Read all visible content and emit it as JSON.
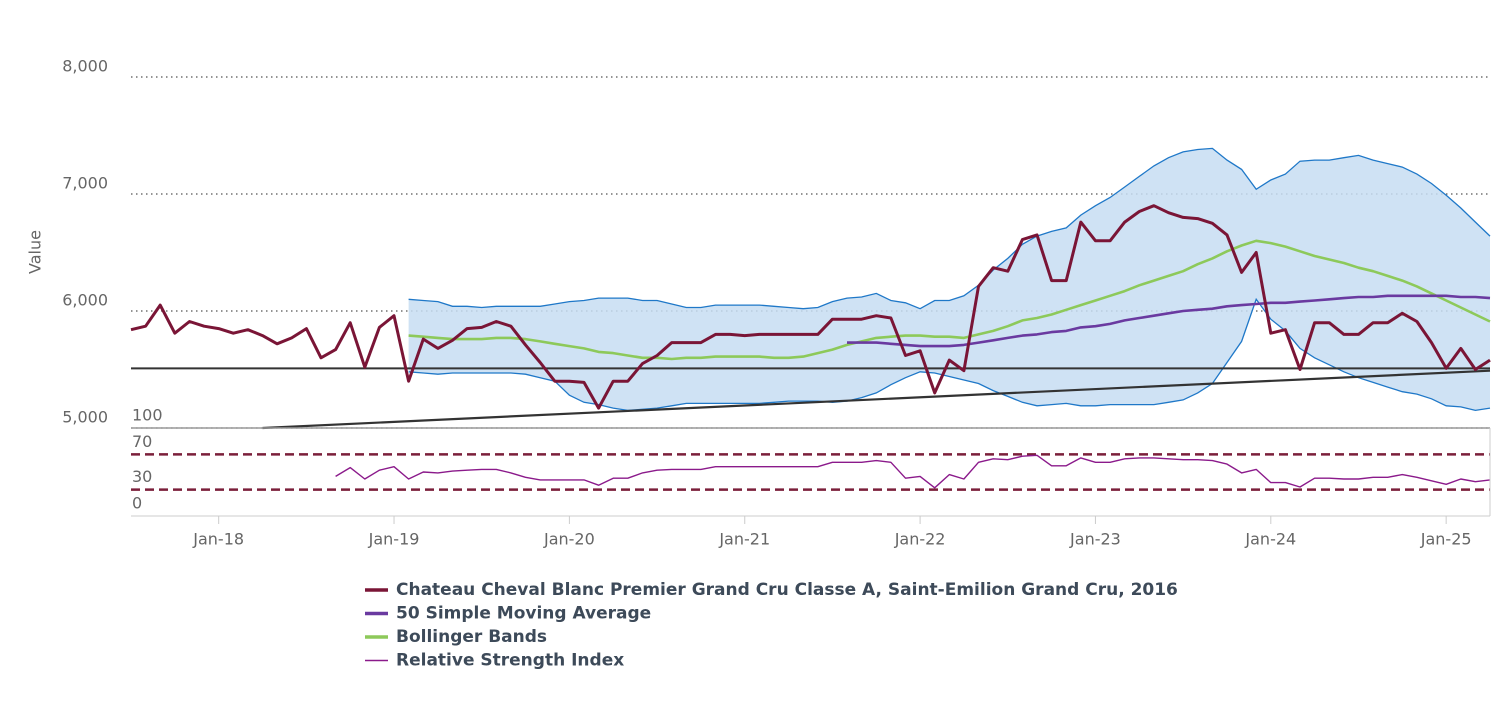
{
  "chart_data": {
    "type": "line",
    "ylabel": "Value",
    "ylim": [
      5000,
      8000
    ],
    "yticks": [
      {
        "value": 5000,
        "label": "5,000"
      },
      {
        "value": 6000,
        "label": "6,000"
      },
      {
        "value": 7000,
        "label": "7,000"
      },
      {
        "value": 8000,
        "label": "8,000"
      }
    ],
    "y2lim": [
      0,
      100
    ],
    "y2ticks": [
      0,
      30,
      70,
      100
    ],
    "xlim": [
      "2017-07",
      "2025-04"
    ],
    "xticks": [
      {
        "value": "2018-01",
        "label": "Jan-18"
      },
      {
        "value": "2019-01",
        "label": "Jan-19"
      },
      {
        "value": "2020-01",
        "label": "Jan-20"
      },
      {
        "value": "2021-01",
        "label": "Jan-21"
      },
      {
        "value": "2022-01",
        "label": "Jan-22"
      },
      {
        "value": "2023-01",
        "label": "Jan-23"
      },
      {
        "value": "2024-01",
        "label": "Jan-24"
      },
      {
        "value": "2025-01",
        "label": "Jan-25"
      }
    ],
    "grid": true,
    "x": [
      "2017-07",
      "2017-08",
      "2017-09",
      "2017-10",
      "2017-11",
      "2017-12",
      "2018-01",
      "2018-02",
      "2018-03",
      "2018-04",
      "2018-05",
      "2018-06",
      "2018-07",
      "2018-08",
      "2018-09",
      "2018-10",
      "2018-11",
      "2018-12",
      "2019-01",
      "2019-02",
      "2019-03",
      "2019-04",
      "2019-05",
      "2019-06",
      "2019-07",
      "2019-08",
      "2019-09",
      "2019-10",
      "2019-11",
      "2019-12",
      "2020-01",
      "2020-02",
      "2020-03",
      "2020-04",
      "2020-05",
      "2020-06",
      "2020-07",
      "2020-08",
      "2020-09",
      "2020-10",
      "2020-11",
      "2020-12",
      "2021-01",
      "2021-02",
      "2021-03",
      "2021-04",
      "2021-05",
      "2021-06",
      "2021-07",
      "2021-08",
      "2021-09",
      "2021-10",
      "2021-11",
      "2021-12",
      "2022-01",
      "2022-02",
      "2022-03",
      "2022-04",
      "2022-05",
      "2022-06",
      "2022-07",
      "2022-08",
      "2022-09",
      "2022-10",
      "2022-11",
      "2022-12",
      "2023-01",
      "2023-02",
      "2023-03",
      "2023-04",
      "2023-05",
      "2023-06",
      "2023-07",
      "2023-08",
      "2023-09",
      "2023-10",
      "2023-11",
      "2023-12",
      "2024-01",
      "2024-02",
      "2024-03",
      "2024-04",
      "2024-05",
      "2024-06",
      "2024-07",
      "2024-08",
      "2024-09",
      "2024-10",
      "2024-11",
      "2024-12",
      "2025-01",
      "2025-02",
      "2025-03",
      "2025-04"
    ],
    "series": [
      {
        "name": "Chateau Cheval Blanc Premier Grand Cru Classe A, Saint-Emilion Grand Cru, 2016",
        "color": "#7a1536",
        "values": [
          5840,
          5870,
          6050,
          5810,
          5910,
          5870,
          5850,
          5810,
          5840,
          5790,
          5720,
          5770,
          5850,
          5600,
          5670,
          5900,
          5520,
          5860,
          5960,
          5400,
          5760,
          5680,
          5750,
          5850,
          5860,
          5910,
          5870,
          5710,
          5560,
          5400,
          5400,
          5390,
          5170,
          5400,
          5400,
          5550,
          5620,
          5730,
          5730,
          5730,
          5800,
          5800,
          5790,
          5800,
          5800,
          5800,
          5800,
          5800,
          5930,
          5930,
          5930,
          5960,
          5940,
          5620,
          5660,
          5300,
          5580,
          5490,
          6210,
          6370,
          6340,
          6610,
          6650,
          6260,
          6260,
          6760,
          6600,
          6600,
          6760,
          6850,
          6900,
          6840,
          6800,
          6790,
          6750,
          6650,
          6330,
          6500,
          5810,
          5840,
          5500,
          5900,
          5900,
          5800,
          5800,
          5900,
          5900,
          5980,
          5910,
          5730,
          5510,
          5680,
          5500,
          5580
        ]
      },
      {
        "name": "50 Simple Moving Average",
        "color": "#6a3aa0",
        "values": [
          null,
          null,
          null,
          null,
          null,
          null,
          null,
          null,
          null,
          null,
          null,
          null,
          null,
          null,
          null,
          null,
          null,
          null,
          null,
          null,
          null,
          null,
          null,
          null,
          null,
          null,
          null,
          null,
          null,
          null,
          null,
          null,
          null,
          null,
          null,
          null,
          null,
          null,
          null,
          null,
          null,
          null,
          null,
          null,
          null,
          null,
          null,
          null,
          null,
          5730,
          5730,
          5730,
          5720,
          5710,
          5700,
          5700,
          5700,
          5710,
          5730,
          5750,
          5770,
          5790,
          5800,
          5820,
          5830,
          5860,
          5870,
          5890,
          5920,
          5940,
          5960,
          5980,
          6000,
          6010,
          6020,
          6040,
          6050,
          6060,
          6070,
          6070,
          6080,
          6090,
          6100,
          6110,
          6120,
          6120,
          6130,
          6130,
          6130,
          6130,
          6130,
          6120,
          6120,
          6110
        ]
      },
      {
        "name": "Bollinger Bands",
        "color": "#8dc95a",
        "band_color": "#c7ddf2",
        "band_line_color": "#1f78c8",
        "values": [
          null,
          null,
          null,
          null,
          null,
          null,
          null,
          null,
          null,
          null,
          null,
          null,
          null,
          null,
          null,
          null,
          null,
          null,
          null,
          5790,
          5780,
          5770,
          5760,
          5760,
          5760,
          5770,
          5770,
          5760,
          5740,
          5720,
          5700,
          5680,
          5650,
          5640,
          5620,
          5600,
          5600,
          5590,
          5600,
          5600,
          5610,
          5610,
          5610,
          5610,
          5600,
          5600,
          5610,
          5640,
          5670,
          5710,
          5740,
          5770,
          5780,
          5790,
          5790,
          5780,
          5780,
          5770,
          5800,
          5830,
          5870,
          5920,
          5940,
          5970,
          6010,
          6050,
          6090,
          6130,
          6170,
          6220,
          6260,
          6300,
          6340,
          6400,
          6450,
          6510,
          6560,
          6600,
          6580,
          6550,
          6510,
          6470,
          6440,
          6410,
          6370,
          6340,
          6300,
          6260,
          6210,
          6150,
          6090,
          6030,
          5970,
          5910
        ],
        "upper": [
          null,
          null,
          null,
          null,
          null,
          null,
          null,
          null,
          null,
          null,
          null,
          null,
          null,
          null,
          null,
          null,
          null,
          null,
          null,
          6100,
          6090,
          6080,
          6040,
          6040,
          6030,
          6040,
          6040,
          6040,
          6040,
          6060,
          6080,
          6090,
          6110,
          6110,
          6110,
          6090,
          6090,
          6060,
          6030,
          6030,
          6050,
          6050,
          6050,
          6050,
          6040,
          6030,
          6020,
          6030,
          6080,
          6110,
          6120,
          6150,
          6090,
          6070,
          6020,
          6090,
          6090,
          6130,
          6220,
          6350,
          6450,
          6570,
          6640,
          6680,
          6710,
          6820,
          6900,
          6970,
          7060,
          7150,
          7240,
          7310,
          7360,
          7380,
          7390,
          7290,
          7210,
          7040,
          7120,
          7170,
          7280,
          7290,
          7290,
          7310,
          7330,
          7290,
          7260,
          7230,
          7170,
          7090,
          6990,
          6880,
          6760,
          6640
        ],
        "lower": [
          null,
          null,
          null,
          null,
          null,
          null,
          null,
          null,
          null,
          null,
          null,
          null,
          null,
          null,
          null,
          null,
          null,
          null,
          null,
          5480,
          5470,
          5460,
          5470,
          5470,
          5470,
          5470,
          5470,
          5460,
          5430,
          5400,
          5280,
          5220,
          5200,
          5170,
          5150,
          5160,
          5170,
          5190,
          5210,
          5210,
          5210,
          5210,
          5210,
          5210,
          5220,
          5230,
          5230,
          5230,
          5220,
          5230,
          5260,
          5300,
          5370,
          5430,
          5480,
          5470,
          5440,
          5410,
          5380,
          5320,
          5270,
          5220,
          5190,
          5200,
          5210,
          5190,
          5190,
          5200,
          5200,
          5200,
          5200,
          5220,
          5240,
          5300,
          5380,
          5560,
          5740,
          6100,
          5930,
          5830,
          5680,
          5600,
          5540,
          5480,
          5430,
          5390,
          5350,
          5310,
          5290,
          5250,
          5190,
          5180,
          5150,
          5170
        ]
      },
      {
        "name": "Relative Strength Index",
        "color": "#8b1a8b",
        "axis": "y2",
        "threshold_color": "#7b1f3a",
        "values": [
          null,
          null,
          null,
          null,
          null,
          null,
          null,
          null,
          null,
          null,
          null,
          null,
          null,
          null,
          45,
          55,
          42,
          52,
          56,
          42,
          50,
          49,
          51,
          52,
          53,
          53,
          49,
          44,
          41,
          41,
          41,
          41,
          35,
          43,
          43,
          49,
          52,
          53,
          53,
          53,
          56,
          56,
          56,
          56,
          56,
          56,
          56,
          56,
          61,
          61,
          61,
          63,
          61,
          43,
          45,
          32,
          47,
          42,
          61,
          65,
          64,
          68,
          69,
          57,
          57,
          66,
          61,
          61,
          65,
          66,
          66,
          65,
          64,
          64,
          63,
          59,
          49,
          53,
          38,
          38,
          33,
          43,
          43,
          42,
          42,
          44,
          44,
          47,
          44,
          40,
          36,
          42,
          39,
          41
        ]
      }
    ],
    "trend_line": {
      "color": "#333333",
      "x": [
        "2018-04",
        "2025-04"
      ],
      "values": [
        5000,
        5490
      ]
    },
    "reference_line": {
      "color": "#333333",
      "value": 5510
    }
  }
}
